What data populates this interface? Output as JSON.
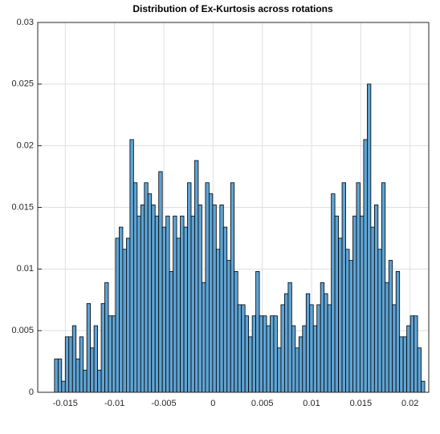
{
  "chart_data": {
    "type": "histogram",
    "title": "Distribution of Ex-Kurtosis across rotations",
    "bins": [
      -0.0161,
      -0.015735,
      -0.01537,
      -0.015005,
      -0.01464,
      -0.014275,
      -0.01391,
      -0.013545,
      -0.01318,
      -0.012815,
      -0.01245,
      -0.012085,
      -0.01172,
      -0.011355,
      -0.01099,
      -0.010625,
      -0.01026,
      -0.009895,
      -0.00953,
      -0.009165,
      -0.0088,
      -0.008435,
      -0.00807,
      -0.007705,
      -0.00734,
      -0.006975,
      -0.00661,
      -0.006245,
      -0.00588,
      -0.005515,
      -0.00515,
      -0.004785,
      -0.00442,
      -0.004055,
      -0.00369,
      -0.003325,
      -0.00296,
      -0.002595,
      -0.00223,
      -0.001865,
      -0.0015,
      -0.001135,
      -0.00077,
      -0.000405,
      -4e-05,
      0.000325,
      0.00069,
      0.001055,
      0.00142,
      0.001785,
      0.00215,
      0.002515,
      0.00288,
      0.003245,
      0.00361,
      0.003975,
      0.00434,
      0.004705,
      0.00507,
      0.005435,
      0.0058,
      0.006165,
      0.00653,
      0.006895,
      0.00726,
      0.007625,
      0.00799,
      0.008355,
      0.00872,
      0.009085,
      0.00945,
      0.009815,
      0.01018,
      0.010545,
      0.01091,
      0.011275,
      0.01164,
      0.012005,
      0.01237,
      0.012735,
      0.0131,
      0.013465,
      0.01383,
      0.014195,
      0.01456,
      0.014925,
      0.01529,
      0.015655,
      0.01602,
      0.016385,
      0.01675,
      0.017115,
      0.01748,
      0.017845,
      0.01821,
      0.018575,
      0.01894,
      0.019305,
      0.01967,
      0.020035,
      0.0204,
      0.020765,
      0.02113,
      0.021495
    ],
    "values": [
      0.0027,
      0.0027,
      0.0009,
      0.0045,
      0.0045,
      0.0054,
      0.0027,
      0.0045,
      0.0018,
      0.0072,
      0.0036,
      0.0054,
      0.0018,
      0.0072,
      0.0089,
      0.0062,
      0.0062,
      0.0125,
      0.0134,
      0.0116,
      0.0125,
      0.0205,
      0.017,
      0.0143,
      0.0152,
      0.017,
      0.0161,
      0.0152,
      0.0143,
      0.0179,
      0.0134,
      0.0143,
      0.0098,
      0.0143,
      0.0125,
      0.0143,
      0.0134,
      0.017,
      0.0143,
      0.0188,
      0.0152,
      0.0089,
      0.017,
      0.0161,
      0.0152,
      0.0116,
      0.0152,
      0.0134,
      0.0107,
      0.017,
      0.0098,
      0.0071,
      0.0071,
      0.0062,
      0.0045,
      0.0062,
      0.0098,
      0.0062,
      0.0062,
      0.0054,
      0.0062,
      0.0062,
      0.0036,
      0.0071,
      0.008,
      0.0089,
      0.0054,
      0.0036,
      0.0045,
      0.0054,
      0.008,
      0.0071,
      0.0054,
      0.0071,
      0.0089,
      0.008,
      0.0071,
      0.0161,
      0.0143,
      0.0125,
      0.017,
      0.0116,
      0.0107,
      0.0143,
      0.017,
      0.0143,
      0.0205,
      0.025,
      0.0134,
      0.0152,
      0.0116,
      0.017,
      0.0089,
      0.0107,
      0.0071,
      0.0098,
      0.0045,
      0.0045,
      0.0054,
      0.0062,
      0.0062,
      0.0036,
      0.0009
    ],
    "color": "#5fa3d3",
    "xlim": [
      -0.0178,
      0.0219
    ],
    "xticks": [
      -0.015,
      -0.01,
      -0.005,
      0,
      0.005,
      0.01,
      0.015,
      0.02
    ],
    "ylim": [
      0,
      0.03
    ],
    "yticks": [
      0,
      0.005,
      0.01,
      0.015,
      0.02,
      0.025,
      0.03
    ],
    "grid": true
  }
}
